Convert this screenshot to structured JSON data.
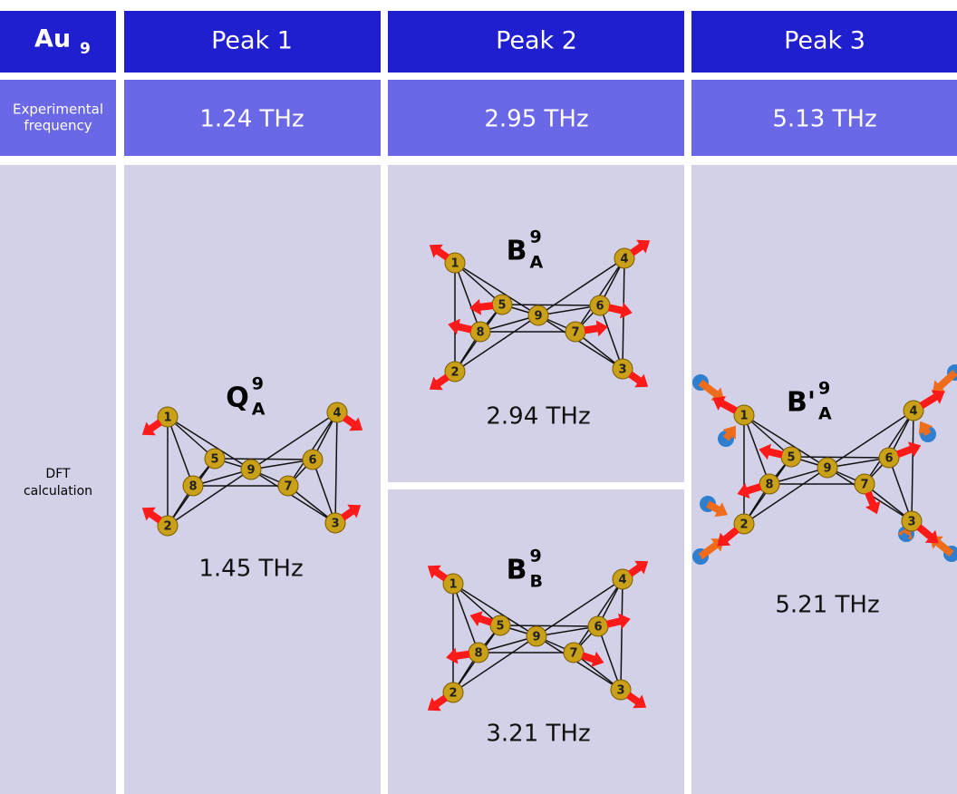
{
  "header": {
    "corner": {
      "symbol": "Au",
      "sub": "9"
    },
    "columns": [
      "Peak 1",
      "Peak 2",
      "Peak 3"
    ]
  },
  "experimental": {
    "label": [
      "Experimental",
      "frequency"
    ],
    "values": [
      "1.24 THz",
      "2.95 THz",
      "5.13 THz"
    ]
  },
  "dft": {
    "label": [
      "DFT",
      "calculation"
    ],
    "modes": [
      {
        "symbol": "Q",
        "sup": "9",
        "sub": "A",
        "frequency": "1.45 THz"
      },
      {
        "symbol": "B",
        "sup": "9",
        "sub": "A",
        "frequency": "2.94 THz"
      },
      {
        "symbol": "B",
        "sup": "9",
        "sub": "B",
        "frequency": "3.21 THz"
      },
      {
        "symbol": "B'",
        "sup": "9",
        "sub": "A",
        "frequency": "5.21 THz"
      }
    ]
  },
  "atoms": [
    "1",
    "2",
    "3",
    "4",
    "5",
    "6",
    "7",
    "8",
    "9"
  ]
}
